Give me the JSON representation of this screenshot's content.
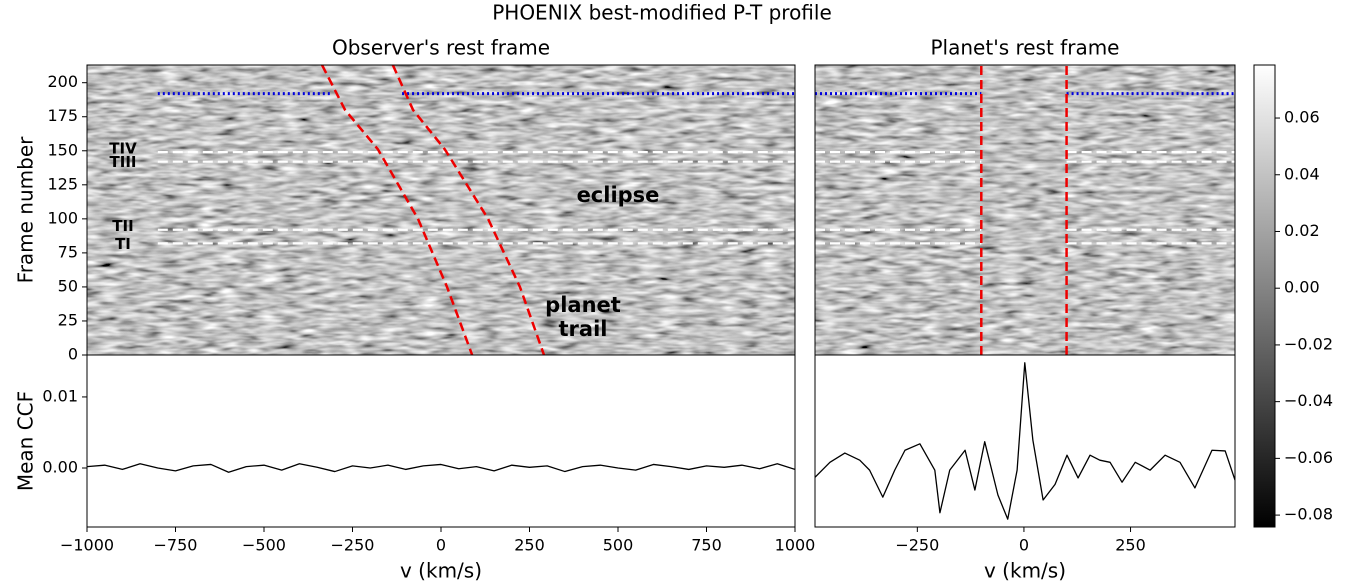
{
  "suptitle": "PHOENIX best-modified P-T profile",
  "chart_data": [
    {
      "type": "heatmap",
      "title": "Observer's rest frame",
      "ylabel": "Frame number",
      "xlim": [
        -1000,
        1000
      ],
      "ylim": [
        0,
        213
      ],
      "yticks": [
        0,
        25,
        50,
        75,
        100,
        125,
        150,
        175,
        200
      ],
      "transits": [
        {
          "label": "TIV",
          "frame": 149
        },
        {
          "label": "TIII",
          "frame": 142
        },
        {
          "label": "TII",
          "frame": 92
        },
        {
          "label": "TI",
          "frame": 82
        }
      ],
      "transit_segments": [
        [
          -800,
          1000
        ]
      ],
      "transit_color": "#ffffff",
      "eclipse": {
        "frame": 192,
        "segments": [
          [
            -800,
            -310
          ],
          [
            -110,
            1000
          ]
        ],
        "color": "#0000dd"
      },
      "trails": [
        {
          "color": "#ee0000",
          "x": [
            -336,
            -271,
            -178,
            -65,
            17,
            88
          ],
          "frames": [
            213,
            180,
            151,
            100,
            50,
            0
          ]
        },
        {
          "color": "#ee0000",
          "x": [
            -136,
            -79,
            11,
            133,
            223,
            291
          ],
          "frames": [
            213,
            180,
            151,
            100,
            50,
            0
          ]
        }
      ],
      "annotations": [
        {
          "text": "eclipse",
          "color": "#ffffff"
        },
        {
          "text": "planet",
          "color": "#ee0000"
        },
        {
          "text": "trail",
          "color": "#ee0000"
        }
      ]
    },
    {
      "type": "heatmap",
      "title": "Planet's rest frame",
      "xlim": [
        -490,
        495
      ],
      "ylim": [
        0,
        213
      ],
      "transits": [
        {
          "frame": 149
        },
        {
          "frame": 142
        },
        {
          "frame": 92
        },
        {
          "frame": 82
        }
      ],
      "transit_segments": [
        [
          -490,
          -100
        ],
        [
          100,
          495
        ]
      ],
      "transit_color": "#ffffff",
      "eclipse": {
        "frame": 192,
        "segments": [
          [
            -490,
            -100
          ],
          [
            100,
            495
          ]
        ],
        "color": "#0000dd"
      },
      "trails": [
        {
          "color": "#ee0000",
          "x": [
            -100,
            -100
          ],
          "frames": [
            0,
            213
          ]
        },
        {
          "color": "#ee0000",
          "x": [
            100,
            100
          ],
          "frames": [
            0,
            213
          ]
        }
      ]
    },
    {
      "type": "line",
      "ylabel": "Mean CCF",
      "xlabel": "v (km/s)",
      "color": "#000000",
      "xlim": [
        -1000,
        1000
      ],
      "ylim": [
        -0.0083,
        0.0159
      ],
      "xticks": [
        {
          "value": -1000,
          "label": "−1000"
        },
        {
          "value": -750,
          "label": "−750"
        },
        {
          "value": -500,
          "label": "−500"
        },
        {
          "value": -250,
          "label": "−250"
        },
        0,
        250,
        500,
        750,
        1000
      ],
      "yticks": [
        {
          "value": 0,
          "label": "0.00"
        },
        {
          "value": 0.01,
          "label": "0.01"
        }
      ],
      "x": [
        -1000,
        -950,
        -900,
        -850,
        -800,
        -750,
        -700,
        -650,
        -600,
        -550,
        -500,
        -450,
        -400,
        -350,
        -300,
        -250,
        -200,
        -150,
        -100,
        -50,
        0,
        50,
        100,
        150,
        200,
        250,
        300,
        350,
        400,
        450,
        500,
        550,
        600,
        650,
        700,
        750,
        800,
        850,
        900,
        950,
        1000
      ],
      "values": [
        0.0002,
        0.0004,
        -0.0002,
        0.0006,
        0,
        -0.0004,
        0.0003,
        0.0005,
        -0.0006,
        0.0002,
        0.0004,
        -0.0003,
        0.0006,
        0.0001,
        -0.0005,
        0.0003,
        0,
        0.0004,
        -0.0002,
        0.0003,
        0.0005,
        -0.0001,
        0.0002,
        -0.0004,
        0.0004,
        0.0001,
        0.0003,
        -0.0005,
        0.0002,
        0.0004,
        0,
        -0.0003,
        0.0005,
        0.0002,
        -0.0002,
        0.0003,
        0.0001,
        0.0004,
        -0.0001,
        0.0006,
        -0.0002
      ]
    },
    {
      "type": "line",
      "xlabel": "v (km/s)",
      "color": "#000000",
      "xlim": [
        -490,
        495
      ],
      "ylim": [
        -0.0083,
        0.0159
      ],
      "xticks": [
        {
          "value": -250,
          "label": "−250"
        },
        0,
        250
      ],
      "x": [
        -490,
        -455,
        -420,
        -385,
        -362,
        -331,
        -303,
        -279,
        -244,
        -209,
        -197,
        -174,
        -138,
        -115,
        -92,
        -61,
        -38,
        -16,
        2,
        21,
        45,
        73,
        101,
        127,
        155,
        178,
        202,
        230,
        261,
        296,
        331,
        366,
        401,
        441,
        472,
        495
      ],
      "values": [
        -0.0013,
        0.0008,
        0.0021,
        0.0011,
        -0.0003,
        -0.0041,
        -0.0003,
        0.0025,
        0.0034,
        -0.0003,
        -0.0063,
        -0.0003,
        0.0025,
        -0.0031,
        0.0037,
        -0.0038,
        -0.0072,
        -0.0003,
        0.0148,
        0.0039,
        -0.0045,
        -0.0023,
        0.0018,
        -0.0014,
        0.0018,
        0.0011,
        0.0008,
        -0.002,
        0.0008,
        -0.0003,
        0.0018,
        0.0008,
        -0.0028,
        0.0025,
        0.0024,
        -0.0017
      ]
    },
    {
      "type": "colorbar",
      "ylim": [
        -0.0842,
        0.0787
      ],
      "yticks": [
        {
          "value": -0.08,
          "label": "−0.08"
        },
        {
          "value": -0.06,
          "label": "−0.06"
        },
        {
          "value": -0.04,
          "label": "−0.04"
        },
        {
          "value": -0.02,
          "label": "−0.02"
        },
        {
          "value": 0,
          "label": "0.00"
        },
        {
          "value": 0.02,
          "label": "0.02"
        },
        {
          "value": 0.04,
          "label": "0.04"
        },
        {
          "value": 0.06,
          "label": "0.06"
        }
      ]
    }
  ]
}
